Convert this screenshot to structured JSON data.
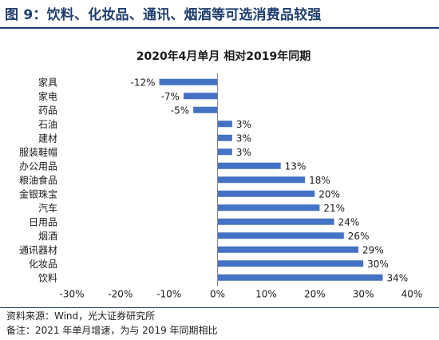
{
  "figure_title": "图 9：饮料、化妆品、通讯、烟酒等可选消费品较强",
  "source_note": "资料来源：Wind，光大证券研究所",
  "remark_note": "备注：2021 年单月增速，为与 2019 年同期相比",
  "colors": {
    "bar": "#4472c4",
    "title": "#1f3e6e",
    "axis": "#808080"
  },
  "chart_data": {
    "type": "bar",
    "orientation": "horizontal",
    "title": "2020年4月单月 相对2019年同期",
    "categories": [
      "家具",
      "家电",
      "药品",
      "石油",
      "建材",
      "服装鞋帽",
      "办公用品",
      "粮油食品",
      "金银珠宝",
      "汽车",
      "日用品",
      "烟酒",
      "通讯器材",
      "化妆品",
      "饮料"
    ],
    "values": [
      -12,
      -7,
      -5,
      3,
      3,
      3,
      13,
      18,
      20,
      21,
      24,
      26,
      29,
      30,
      34
    ],
    "data_labels": [
      "-12%",
      "-7%",
      "-5%",
      "3%",
      "3%",
      "3%",
      "13%",
      "18%",
      "20%",
      "21%",
      "24%",
      "26%",
      "29%",
      "30%",
      "34%"
    ],
    "xlim": [
      -30,
      40
    ],
    "xticks": [
      -30,
      -20,
      -10,
      0,
      10,
      20,
      30,
      40
    ],
    "xtick_labels": [
      "-30%",
      "-20%",
      "-10%",
      "0%",
      "10%",
      "20%",
      "30%",
      "40%"
    ],
    "grid": false,
    "legend": "none"
  }
}
